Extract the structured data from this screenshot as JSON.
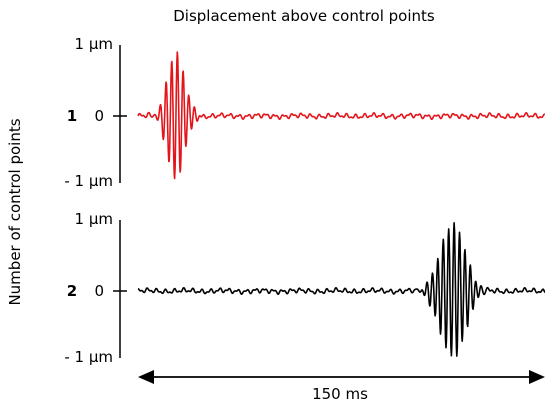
{
  "chart_data": {
    "type": "line",
    "title": "Displacement above control points",
    "ylabel": "Number of control points",
    "xlabel": "150 ms",
    "x_span_ms": 150,
    "ylim": [
      -1,
      1
    ],
    "colors": {
      "series1": "#e3151b",
      "series2": "#000000"
    },
    "panels": [
      {
        "label": "1",
        "name": "1",
        "color": "#e3151b",
        "tick_labels": {
          "top": "1 µm",
          "mid": "0",
          "bottom": "- 1 µm"
        },
        "burst_center_ms": 14,
        "burst_width_ms": 4.5,
        "burst_amplitude": 0.9,
        "burst_period_ms": 2.1
      },
      {
        "label": "2",
        "name": "2",
        "color": "#000000",
        "tick_labels": {
          "top": "1 µm",
          "mid": "0",
          "bottom": "- 1 µm"
        },
        "burst_center_ms": 116,
        "burst_width_ms": 6.5,
        "burst_amplitude": 0.95,
        "burst_period_ms": 2.0
      }
    ]
  }
}
